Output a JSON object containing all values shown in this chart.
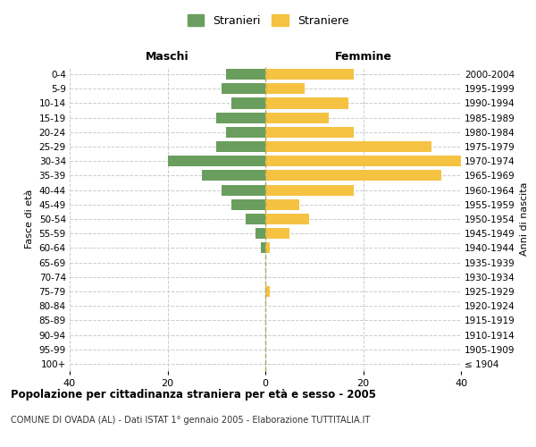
{
  "age_groups": [
    "100+",
    "95-99",
    "90-94",
    "85-89",
    "80-84",
    "75-79",
    "70-74",
    "65-69",
    "60-64",
    "55-59",
    "50-54",
    "45-49",
    "40-44",
    "35-39",
    "30-34",
    "25-29",
    "20-24",
    "15-19",
    "10-14",
    "5-9",
    "0-4"
  ],
  "birth_years": [
    "≤ 1904",
    "1905-1909",
    "1910-1914",
    "1915-1919",
    "1920-1924",
    "1925-1929",
    "1930-1934",
    "1935-1939",
    "1940-1944",
    "1945-1949",
    "1950-1954",
    "1955-1959",
    "1960-1964",
    "1965-1969",
    "1970-1974",
    "1975-1979",
    "1980-1984",
    "1985-1989",
    "1990-1994",
    "1995-1999",
    "2000-2004"
  ],
  "maschi": [
    0,
    0,
    0,
    0,
    0,
    0,
    0,
    0,
    1,
    2,
    4,
    7,
    9,
    13,
    20,
    10,
    8,
    10,
    7,
    9,
    8
  ],
  "femmine": [
    0,
    0,
    0,
    0,
    0,
    1,
    0,
    0,
    1,
    5,
    9,
    7,
    18,
    36,
    40,
    34,
    18,
    13,
    17,
    8,
    18
  ],
  "maschi_color": "#6a9e5e",
  "femmine_color": "#f5c242",
  "background_color": "#ffffff",
  "grid_color": "#cccccc",
  "title": "Popolazione per cittadinanza straniera per età e sesso - 2005",
  "subtitle": "COMUNE DI OVADA (AL) - Dati ISTAT 1° gennaio 2005 - Elaborazione TUTTITALIA.IT",
  "ylabel_left": "Fasce di età",
  "ylabel_right": "Anni di nascita",
  "label_maschi": "Maschi",
  "label_femmine": "Femmine",
  "legend_maschi": "Stranieri",
  "legend_femmine": "Straniere",
  "xlim": 40,
  "center_line_color": "#aaa860"
}
